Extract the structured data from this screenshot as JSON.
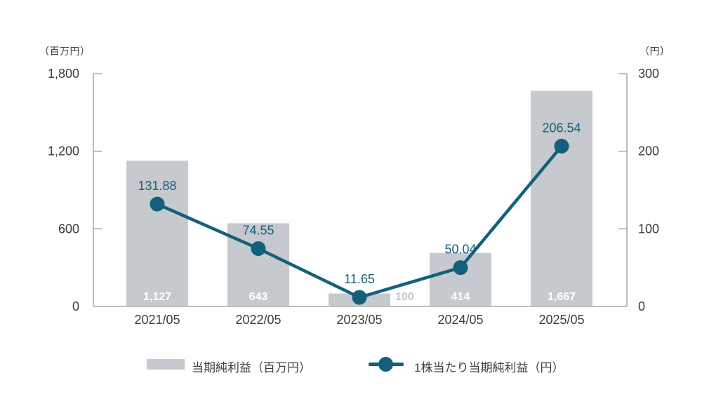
{
  "chart_data": {
    "type": "combo (bar + line, dual axis)",
    "categories": [
      "2021/05",
      "2022/05",
      "2023/05",
      "2024/05",
      "2025/05"
    ],
    "series": [
      {
        "name": "当期純利益（百万円）",
        "type": "bar",
        "axis": "left",
        "values": [
          1127,
          643,
          100,
          414,
          1667
        ],
        "value_labels": [
          "1,127",
          "643",
          "100",
          "414",
          "1,667"
        ]
      },
      {
        "name": "1株当たり当期純利益（円）",
        "type": "line",
        "axis": "right",
        "values": [
          131.88,
          74.55,
          11.65,
          50.04,
          206.54
        ],
        "value_labels": [
          "131.88",
          "74.55",
          "11.65",
          "50.04",
          "206.54"
        ]
      }
    ],
    "axes": {
      "left": {
        "unit": "（百万円）",
        "min": 0,
        "max": 1800,
        "tick_values": [
          0,
          600,
          1200,
          1800
        ],
        "tick_labels": [
          "0",
          "600",
          "1,200",
          "1,800"
        ]
      },
      "right": {
        "unit": "（円）",
        "min": 0,
        "max": 300,
        "tick_values": [
          0,
          100,
          200,
          300
        ],
        "tick_labels": [
          "0",
          "100",
          "200",
          "300"
        ]
      }
    },
    "legend": {
      "position": "bottom",
      "items": [
        {
          "marker": "bar-swatch",
          "label": "当期純利益（百万円）"
        },
        {
          "marker": "line-dot",
          "label": "1株当たり当期純利益（円）"
        }
      ]
    },
    "grid": false,
    "colors": {
      "bar": "#c6c9cd",
      "line": "#14607c",
      "bar_label_inside": "#ffffff",
      "bar_label_outside": "#c4c8cb",
      "point_label": "#14607c",
      "axis": "#a6a6a6",
      "tick_text": "#3d3d3d",
      "category_text": "#3d3d3d"
    }
  }
}
